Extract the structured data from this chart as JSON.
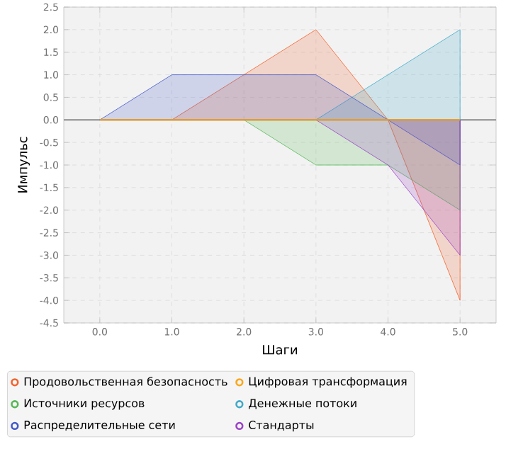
{
  "chart_data": {
    "type": "area",
    "xlabel": "Шаги",
    "ylabel": "Импульс",
    "xlim": [
      -0.5,
      5.5
    ],
    "xticks": [
      {
        "value": 0,
        "label": "0.0"
      },
      {
        "value": 1,
        "label": "1.0"
      },
      {
        "value": 2,
        "label": "2.0"
      },
      {
        "value": 3,
        "label": "3.0"
      },
      {
        "value": 4,
        "label": "4.0"
      },
      {
        "value": 5,
        "label": "5.0"
      }
    ],
    "ylim": [
      -4.5,
      2.5
    ],
    "yticks": [
      {
        "value": -4.5,
        "label": "-4.5"
      },
      {
        "value": -4,
        "label": "-4.0"
      },
      {
        "value": -3.5,
        "label": "-3.5"
      },
      {
        "value": -3,
        "label": "-3.0"
      },
      {
        "value": -2.5,
        "label": "-2.5"
      },
      {
        "value": -2,
        "label": "-2.0"
      },
      {
        "value": -1.5,
        "label": "-1.5"
      },
      {
        "value": -1,
        "label": "-1.0"
      },
      {
        "value": -0.5,
        "label": "-0.5"
      },
      {
        "value": 0,
        "label": "0.0"
      },
      {
        "value": 0.5,
        "label": "0.5"
      },
      {
        "value": 1,
        "label": "1.0"
      },
      {
        "value": 1.5,
        "label": "1.5"
      },
      {
        "value": 2,
        "label": "2.0"
      },
      {
        "value": 2.5,
        "label": "2.5"
      }
    ],
    "grid": true,
    "legend": "bottom",
    "marker": "none",
    "ref_lines": [
      {
        "axis": "y",
        "value": 0,
        "color": "#a0a0a0"
      }
    ],
    "series": [
      {
        "name": "Продовольственная безопасность",
        "color": "#f3622d",
        "x": [
          1,
          2,
          3,
          4,
          5
        ],
        "values": [
          0,
          1,
          2,
          0,
          -4
        ]
      },
      {
        "name": "Цифровая трансформация",
        "color": "#fba71b",
        "type": "line",
        "x": [
          0,
          1,
          2,
          3,
          4,
          5
        ],
        "values": [
          0,
          0,
          0,
          0,
          0,
          0
        ]
      },
      {
        "name": "Источники ресурсов",
        "color": "#57b757",
        "x": [
          0,
          1,
          2,
          3,
          4,
          5
        ],
        "values": [
          0,
          0,
          0,
          -1,
          -1,
          -2
        ]
      },
      {
        "name": "Денежные потоки",
        "color": "#41a9c9",
        "x": [
          0,
          1,
          2,
          3,
          4,
          5
        ],
        "values": [
          0,
          0,
          0,
          0,
          1,
          2
        ]
      },
      {
        "name": "Распределительные сети",
        "color": "#4258c9",
        "x": [
          0,
          1,
          2,
          3,
          4,
          5
        ],
        "values": [
          0,
          1,
          1,
          1,
          0,
          -1
        ]
      },
      {
        "name": "Стандарты",
        "color": "#9a42c8",
        "x": [
          0,
          1,
          2,
          3,
          4,
          5
        ],
        "values": [
          0,
          0,
          0,
          0,
          -1,
          -3
        ]
      }
    ]
  }
}
